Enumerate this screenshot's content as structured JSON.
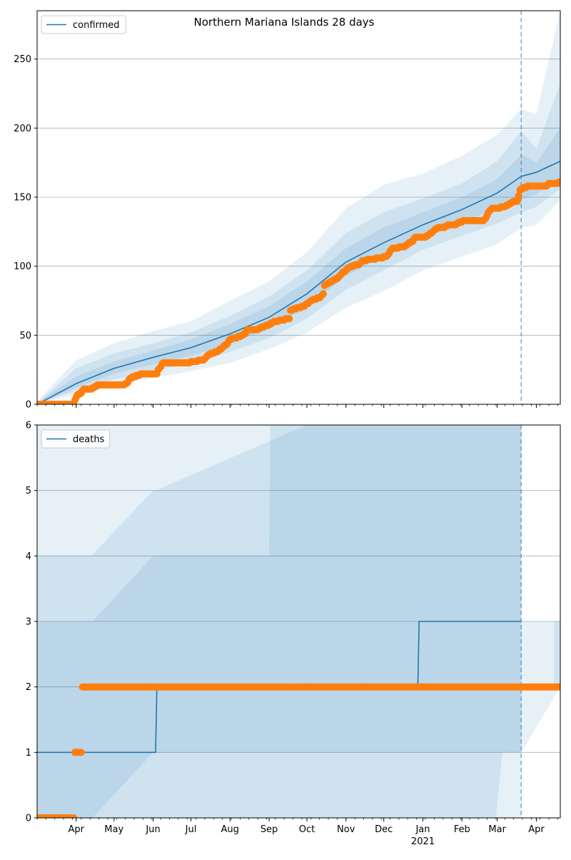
{
  "title": "Northern Mariana Islands 28 days",
  "colors": {
    "model": "#1f77b4",
    "band": "#1f77b4",
    "observed": "#ff7f0e",
    "grid": "#b0b0b0",
    "axis": "#000000"
  },
  "x_axis": {
    "start": "2020-03-01",
    "end": "2021-04-20",
    "forecast_start": "2021-03-20",
    "tick_labels": [
      {
        "date": "2020-04-01",
        "label": "Apr"
      },
      {
        "date": "2020-05-01",
        "label": "May"
      },
      {
        "date": "2020-06-01",
        "label": "Jun"
      },
      {
        "date": "2020-07-01",
        "label": "Jul"
      },
      {
        "date": "2020-08-01",
        "label": "Aug"
      },
      {
        "date": "2020-09-01",
        "label": "Sep"
      },
      {
        "date": "2020-10-01",
        "label": "Oct"
      },
      {
        "date": "2020-11-01",
        "label": "Nov"
      },
      {
        "date": "2020-12-01",
        "label": "Dec"
      },
      {
        "date": "2021-01-01",
        "label": "Jan"
      },
      {
        "date": "2021-02-01",
        "label": "Feb"
      },
      {
        "date": "2021-03-01",
        "label": "Mar"
      },
      {
        "date": "2021-04-01",
        "label": "Apr"
      }
    ],
    "year_label": {
      "date": "2021-01-01",
      "label": "2021"
    }
  },
  "chart_data": [
    {
      "type": "line",
      "title": "Northern Mariana Islands 28 days",
      "ylim": [
        0,
        285
      ],
      "yticks": [
        0,
        50,
        100,
        150,
        200,
        250
      ],
      "grid": "horizontal",
      "legend": {
        "position": "top-left",
        "entries": [
          "confirmed"
        ]
      },
      "series": [
        {
          "name": "confirmed",
          "style": "line",
          "points": [
            [
              "2020-03-01",
              0
            ],
            [
              "2020-04-01",
              15
            ],
            [
              "2020-05-01",
              26
            ],
            [
              "2020-06-01",
              34
            ],
            [
              "2020-07-01",
              41
            ],
            [
              "2020-08-01",
              51
            ],
            [
              "2020-09-01",
              63
            ],
            [
              "2020-10-01",
              80
            ],
            [
              "2020-11-01",
              103
            ],
            [
              "2020-12-01",
              117
            ],
            [
              "2021-01-01",
              130
            ],
            [
              "2021-02-01",
              141
            ],
            [
              "2021-03-01",
              153
            ],
            [
              "2021-03-20",
              165
            ],
            [
              "2021-04-01",
              168
            ],
            [
              "2021-04-20",
              176
            ]
          ]
        },
        {
          "style": "markers",
          "points": [
            [
              "2020-03-01",
              0
            ],
            [
              "2020-03-30",
              0
            ],
            [
              "2020-03-31",
              3
            ],
            [
              "2020-04-02",
              7
            ],
            [
              "2020-04-05",
              8
            ],
            [
              "2020-04-07",
              11
            ],
            [
              "2020-04-13",
              11
            ],
            [
              "2020-04-16",
              13
            ],
            [
              "2020-04-20",
              14
            ],
            [
              "2020-05-09",
              14
            ],
            [
              "2020-05-11",
              15
            ],
            [
              "2020-05-14",
              19
            ],
            [
              "2020-05-17",
              20
            ],
            [
              "2020-05-20",
              21
            ],
            [
              "2020-05-23",
              22
            ],
            [
              "2020-06-04",
              22
            ],
            [
              "2020-06-05",
              25
            ],
            [
              "2020-06-07",
              27
            ],
            [
              "2020-06-09",
              30
            ],
            [
              "2020-06-30",
              30
            ],
            [
              "2020-07-02",
              31
            ],
            [
              "2020-07-11",
              32
            ],
            [
              "2020-07-15",
              36
            ],
            [
              "2020-07-18",
              37
            ],
            [
              "2020-07-22",
              38
            ],
            [
              "2020-07-26",
              41
            ],
            [
              "2020-07-30",
              44
            ],
            [
              "2020-08-01",
              47
            ],
            [
              "2020-08-05",
              48
            ],
            [
              "2020-08-09",
              49
            ],
            [
              "2020-08-13",
              51
            ],
            [
              "2020-08-15",
              54
            ],
            [
              "2020-08-23",
              54
            ],
            [
              "2020-08-26",
              56
            ],
            [
              "2020-08-31",
              57
            ],
            [
              "2020-09-03",
              59
            ],
            [
              "2020-09-10",
              61
            ],
            [
              "2020-09-17",
              62
            ],
            [
              "2020-09-18",
              68
            ],
            [
              "2020-09-24",
              70
            ],
            [
              "2020-09-29",
              71
            ],
            [
              "2020-10-03",
              74
            ],
            [
              "2020-10-07",
              76
            ],
            [
              "2020-10-11",
              77
            ],
            [
              "2020-10-14",
              80
            ],
            [
              "2020-10-15",
              86
            ],
            [
              "2020-10-19",
              88
            ],
            [
              "2020-10-25",
              91
            ],
            [
              "2020-10-28",
              94
            ],
            [
              "2020-11-01",
              97
            ],
            [
              "2020-11-05",
              100
            ],
            [
              "2020-11-11",
              101
            ],
            [
              "2020-11-14",
              104
            ],
            [
              "2020-11-21",
              105
            ],
            [
              "2020-11-28",
              106
            ],
            [
              "2020-12-03",
              107
            ],
            [
              "2020-12-08",
              113
            ],
            [
              "2020-12-17",
              114
            ],
            [
              "2020-12-20",
              116
            ],
            [
              "2020-12-24",
              118
            ],
            [
              "2020-12-26",
              121
            ],
            [
              "2021-01-03",
              121
            ],
            [
              "2021-01-06",
              123
            ],
            [
              "2021-01-09",
              125
            ],
            [
              "2021-01-13",
              128
            ],
            [
              "2021-01-18",
              128
            ],
            [
              "2021-01-21",
              130
            ],
            [
              "2021-01-27",
              130
            ],
            [
              "2021-01-30",
              132
            ],
            [
              "2021-02-04",
              133
            ],
            [
              "2021-02-18",
              133
            ],
            [
              "2021-02-20",
              135
            ],
            [
              "2021-02-22",
              139
            ],
            [
              "2021-02-25",
              142
            ],
            [
              "2021-03-01",
              142
            ],
            [
              "2021-03-07",
              143
            ],
            [
              "2021-03-11",
              145
            ],
            [
              "2021-03-15",
              147
            ],
            [
              "2021-03-17",
              147
            ],
            [
              "2021-03-19",
              155
            ],
            [
              "2021-03-22",
              157
            ],
            [
              "2021-03-27",
              158
            ],
            [
              "2021-04-09",
              158
            ],
            [
              "2021-04-11",
              160
            ],
            [
              "2021-04-17",
              160
            ],
            [
              "2021-04-20",
              161
            ]
          ]
        }
      ],
      "bands": [
        {
          "level": "outer",
          "points": [
            [
              "2020-03-01",
              0,
              2
            ],
            [
              "2020-04-01",
              7,
              32
            ],
            [
              "2020-05-01",
              14,
              44
            ],
            [
              "2020-06-01",
              19,
              53
            ],
            [
              "2020-07-01",
              24,
              60
            ],
            [
              "2020-08-01",
              30,
              75
            ],
            [
              "2020-09-01",
              40,
              89
            ],
            [
              "2020-10-01",
              52,
              110
            ],
            [
              "2020-11-01",
              70,
              142
            ],
            [
              "2020-12-01",
              82,
              159
            ],
            [
              "2021-01-01",
              97,
              167
            ],
            [
              "2021-02-01",
              107,
              180
            ],
            [
              "2021-03-01",
              116,
              195
            ],
            [
              "2021-03-20",
              128,
              214
            ],
            [
              "2021-04-01",
              130,
              210
            ],
            [
              "2021-04-20",
              148,
              285
            ]
          ]
        },
        {
          "level": "middle",
          "points": [
            [
              "2020-03-01",
              0,
              1
            ],
            [
              "2020-04-01",
              10,
              26
            ],
            [
              "2020-05-01",
              18,
              37
            ],
            [
              "2020-06-01",
              24,
              44
            ],
            [
              "2020-07-01",
              30,
              52
            ],
            [
              "2020-08-01",
              38,
              64
            ],
            [
              "2020-09-01",
              48,
              78
            ],
            [
              "2020-10-01",
              62,
              97
            ],
            [
              "2020-11-01",
              83,
              124
            ],
            [
              "2020-12-01",
              97,
              139
            ],
            [
              "2021-01-01",
              112,
              149
            ],
            [
              "2021-02-01",
              122,
              160
            ],
            [
              "2021-03-01",
              131,
              176
            ],
            [
              "2021-03-20",
              139,
              198
            ],
            [
              "2021-04-01",
              143,
              185
            ],
            [
              "2021-04-20",
              156,
              232
            ]
          ]
        },
        {
          "level": "inner",
          "points": [
            [
              "2020-03-01",
              0,
              1
            ],
            [
              "2020-04-01",
              12,
              20
            ],
            [
              "2020-05-01",
              22,
              31
            ],
            [
              "2020-06-01",
              29,
              39
            ],
            [
              "2020-07-01",
              35,
              47
            ],
            [
              "2020-08-01",
              44,
              58
            ],
            [
              "2020-09-01",
              55,
              71
            ],
            [
              "2020-10-01",
              70,
              89
            ],
            [
              "2020-11-01",
              93,
              113
            ],
            [
              "2020-12-01",
              107,
              128
            ],
            [
              "2021-01-01",
              121,
              139
            ],
            [
              "2021-02-01",
              132,
              150
            ],
            [
              "2021-03-01",
              142,
              163
            ],
            [
              "2021-03-20",
              148,
              181
            ],
            [
              "2021-04-01",
              152,
              175
            ],
            [
              "2021-04-20",
              164,
              200
            ]
          ]
        }
      ]
    },
    {
      "type": "line",
      "ylim": [
        0,
        6
      ],
      "yticks": [
        0,
        1,
        2,
        3,
        4,
        5,
        6
      ],
      "grid": "horizontal",
      "legend": {
        "position": "top-left",
        "entries": [
          "deaths"
        ]
      },
      "series": [
        {
          "name": "deaths",
          "style": "step",
          "points": [
            [
              "2020-03-01",
              1
            ],
            [
              "2020-06-03",
              1
            ],
            [
              "2020-06-04",
              2
            ],
            [
              "2020-12-28",
              2
            ],
            [
              "2020-12-29",
              3
            ],
            [
              "2021-03-20",
              3
            ]
          ]
        },
        {
          "style": "markers",
          "points": [
            [
              "2020-03-01",
              0
            ],
            [
              "2020-03-30",
              0
            ],
            [
              "2020-03-31",
              1
            ],
            [
              "2020-04-05",
              1
            ],
            [
              "2020-04-06",
              2
            ],
            [
              "2021-04-20",
              2
            ]
          ]
        }
      ],
      "bands": [
        {
          "level": "outer",
          "points": [
            [
              "2020-03-01",
              0,
              6
            ],
            [
              "2020-04-13",
              0,
              6
            ],
            [
              "2020-09-01",
              0,
              6
            ],
            [
              "2020-09-02",
              0,
              6
            ],
            [
              "2021-03-20",
              0,
              6
            ]
          ]
        },
        {
          "level": "outer_forecast",
          "points": [
            [
              "2021-03-20",
              1,
              3
            ],
            [
              "2021-04-20",
              2,
              3
            ]
          ]
        },
        {
          "level": "middle",
          "points": [
            [
              "2020-03-01",
              0,
              4
            ],
            [
              "2020-04-13",
              0,
              4
            ],
            [
              "2020-06-01",
              0,
              5
            ],
            [
              "2020-06-03",
              0,
              5
            ],
            [
              "2020-10-01",
              0,
              6
            ],
            [
              "2020-10-02",
              0,
              6
            ],
            [
              "2021-02-28",
              0,
              6
            ],
            [
              "2021-03-05",
              1,
              6
            ],
            [
              "2021-03-20",
              1,
              6
            ]
          ]
        },
        {
          "level": "middle_forecast",
          "points": [
            [
              "2021-04-15",
              2,
              3
            ],
            [
              "2021-04-20",
              2,
              3
            ]
          ]
        },
        {
          "level": "inner",
          "points": [
            [
              "2020-03-01",
              0,
              3
            ],
            [
              "2020-04-13",
              0,
              3
            ],
            [
              "2020-04-14",
              0,
              3
            ],
            [
              "2020-06-01",
              1,
              4
            ],
            [
              "2020-06-03",
              1,
              4
            ],
            [
              "2020-09-01",
              1,
              4
            ],
            [
              "2020-09-02",
              1,
              6
            ],
            [
              "2021-03-01",
              1,
              6
            ],
            [
              "2021-03-20",
              1,
              6
            ]
          ]
        }
      ]
    }
  ]
}
